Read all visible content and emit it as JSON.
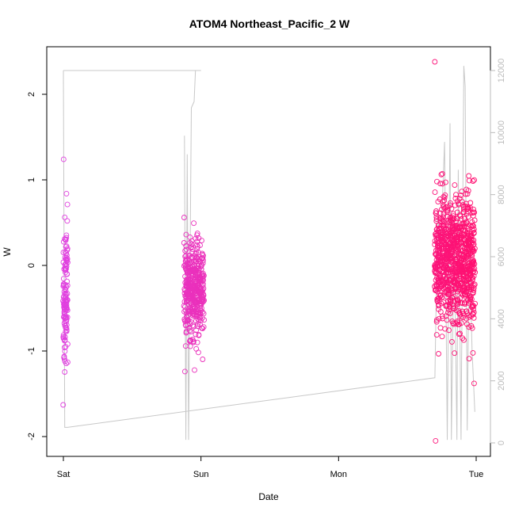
{
  "chart_data": {
    "type": "scatter",
    "title": "ATOM4 Northeast_Pacific_2 W",
    "xlabel": "Date",
    "ylabel": "W",
    "x_tick_labels": [
      "Sat",
      "Sun",
      "Mon",
      "Tue"
    ],
    "y_ticks": [
      -2,
      -1,
      0,
      1,
      2
    ],
    "y_tick_labels": [
      "-2",
      "-1",
      "0",
      "1",
      "2"
    ],
    "ylim": [
      -2.1,
      2.45
    ],
    "y2_ticks": [
      0,
      2000,
      4000,
      6000,
      8000,
      10000,
      12000
    ],
    "y2_tick_labels": [
      "0",
      "2000",
      "4000",
      "6000",
      "8000",
      "10000",
      "12000"
    ],
    "y2lim": [
      -300,
      12500
    ],
    "xlim_days": [
      -0.05,
      3.05
    ],
    "grid": false,
    "colors": {
      "point_start": "#e040e0",
      "point_end": "#ff1070",
      "depth_line": "#c8c8c8",
      "right_axis": "#bbbbbb"
    },
    "clusters": [
      {
        "x_start": 0.0,
        "x_end": 0.03,
        "y_center": -0.35,
        "y_spread": 0.45,
        "y_min": -1.63,
        "y_max": 1.24,
        "n": 130
      },
      {
        "x_start": 0.88,
        "x_end": 1.02,
        "y_center": -0.3,
        "y_spread": 0.28,
        "y_min": -1.24,
        "y_max": 0.56,
        "n": 420
      },
      {
        "x_start": 2.7,
        "x_end": 2.99,
        "y_center": 0.05,
        "y_spread": 0.38,
        "y_min": -2.05,
        "y_max": 2.38,
        "n": 900
      }
    ],
    "depth_series": {
      "name": "depth",
      "points": [
        [
          0.0,
          12000
        ],
        [
          0.01,
          500
        ],
        [
          0.03,
          500
        ],
        [
          2.7,
          2100
        ],
        [
          2.72,
          7500
        ],
        [
          2.74,
          6000
        ],
        [
          2.77,
          9700
        ],
        [
          2.79,
          100
        ],
        [
          2.81,
          10300
        ],
        [
          2.82,
          100
        ],
        [
          2.84,
          7000
        ],
        [
          2.86,
          100
        ],
        [
          2.87,
          8800
        ],
        [
          2.89,
          100
        ],
        [
          2.91,
          12150
        ],
        [
          2.92,
          11500
        ],
        [
          2.935,
          400
        ],
        [
          2.95,
          6500
        ],
        [
          2.97,
          3000
        ],
        [
          2.99,
          1000
        ]
      ],
      "top_line": [
        [
          0.0,
          12000
        ],
        [
          1.0,
          12000
        ]
      ],
      "sun_drops": [
        [
          0.88,
          9900
        ],
        [
          0.89,
          100
        ],
        [
          0.9,
          9300
        ],
        [
          0.91,
          100
        ],
        [
          0.93,
          10800
        ],
        [
          0.95,
          11000
        ],
        [
          0.96,
          12000
        ]
      ]
    }
  }
}
